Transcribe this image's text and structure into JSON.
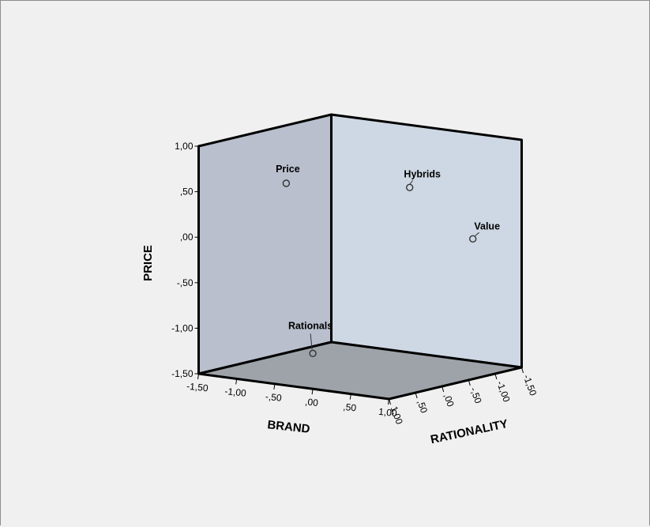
{
  "chart_data": {
    "type": "scatter",
    "projection": "3d",
    "axes": {
      "x": {
        "label": "BRAND",
        "range": [
          -1.5,
          1.0
        ],
        "ticks": [
          -1.5,
          -1.0,
          -0.5,
          0.0,
          0.5,
          1.0
        ],
        "tick_labels": [
          "-1,50",
          "-1,00",
          "-,50",
          ",00",
          ",50",
          "1,00"
        ]
      },
      "y": {
        "label": "PRICE",
        "range": [
          -1.5,
          1.0
        ],
        "ticks": [
          -1.5,
          -1.0,
          -0.5,
          0.0,
          0.5,
          1.0
        ],
        "tick_labels": [
          "-1,50",
          "-1,00",
          "-,50",
          ",00",
          ",50",
          "1,00"
        ]
      },
      "z": {
        "label": "RATIONALITY",
        "range": [
          1.0,
          -1.5
        ],
        "ticks": [
          1.0,
          0.5,
          0.0,
          -0.5,
          -1.0,
          -1.5
        ],
        "tick_labels": [
          "1,00",
          ",50",
          ",00",
          "-,50",
          "-1,00",
          "-1,50"
        ]
      }
    },
    "points": [
      {
        "label": "Price",
        "brand": -0.35,
        "price": 0.72,
        "rationality": 1.0
      },
      {
        "label": "Hybrids",
        "brand": 1.0,
        "price": 0.77,
        "rationality": 0.61
      },
      {
        "label": "Value",
        "brand": 1.0,
        "price": 0.04,
        "rationality": -0.58
      },
      {
        "label": "Rationals",
        "brand": 0.0,
        "price": -1.11,
        "rationality": 1.0
      }
    ],
    "colors": {
      "left_wall": "#b9bfcc",
      "right_wall": "#ced8e4",
      "floor": "#9ea3a9",
      "background": "#f0f0f0"
    }
  }
}
